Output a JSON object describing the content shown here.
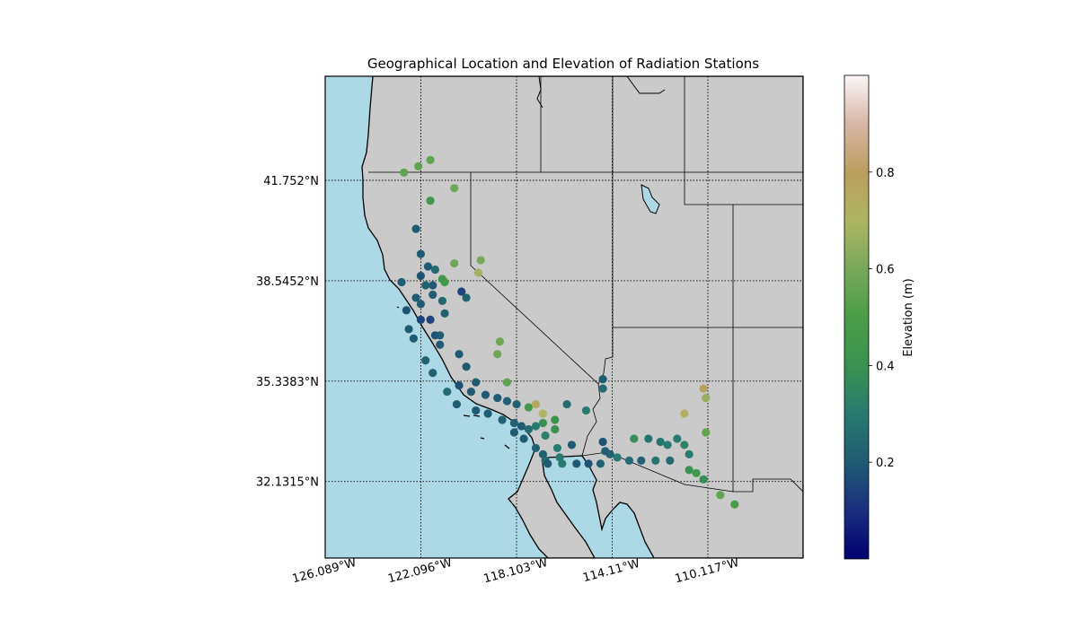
{
  "chart_data": {
    "type": "scatter",
    "title": "Geographical Location and Elevation of Radiation Stations",
    "map_extent": {
      "lon": [
        -126.089,
        -114.11
      ],
      "lat": [
        29.2,
        44.9
      ]
    },
    "x_ticks": [
      {
        "value": -126.089,
        "label": "126.089°W"
      },
      {
        "value": -122.096,
        "label": "122.096°W"
      },
      {
        "value": -118.103,
        "label": "118.103°W"
      },
      {
        "value": -114.11,
        "label": "114.11°W"
      },
      {
        "value": -110.117,
        "label": "110.117°W"
      }
    ],
    "y_ticks": [
      {
        "value": 41.752,
        "label": "41.752°N"
      },
      {
        "value": 38.5452,
        "label": "38.5452°N"
      },
      {
        "value": 35.3383,
        "label": "35.3383°N"
      },
      {
        "value": 32.1315,
        "label": "32.1315°N"
      }
    ],
    "grid": "dotted",
    "colorbar": {
      "label": "Elevation (m)",
      "range": [
        0,
        1
      ],
      "ticks": [
        {
          "value": 0.2,
          "label": "0.2"
        },
        {
          "value": 0.4,
          "label": "0.4"
        },
        {
          "value": 0.6,
          "label": "0.6"
        },
        {
          "value": 0.8,
          "label": "0.8"
        }
      ],
      "colormap": "gist_earth"
    },
    "colors": {
      "ocean": "#add8e6",
      "land": "#cacaca"
    },
    "points": [
      [
        -122.8,
        42.0,
        0.55
      ],
      [
        -122.2,
        42.2,
        0.55
      ],
      [
        -121.7,
        42.4,
        0.55
      ],
      [
        -120.7,
        41.5,
        0.58
      ],
      [
        -121.7,
        41.1,
        0.45
      ],
      [
        -122.3,
        40.2,
        0.2
      ],
      [
        -122.1,
        39.4,
        0.2
      ],
      [
        -120.7,
        39.1,
        0.58
      ],
      [
        -119.7,
        38.8,
        0.68
      ],
      [
        -121.8,
        39.0,
        0.2
      ],
      [
        -122.1,
        38.7,
        0.18
      ],
      [
        -121.5,
        38.9,
        0.25
      ],
      [
        -122.9,
        38.5,
        0.2
      ],
      [
        -121.9,
        38.4,
        0.22
      ],
      [
        -121.6,
        38.1,
        0.2
      ],
      [
        -121.2,
        38.6,
        0.45
      ],
      [
        -121.1,
        38.5,
        0.45
      ],
      [
        -121.6,
        38.4,
        0.2
      ],
      [
        -120.4,
        38.2,
        0.15
      ],
      [
        -122.3,
        38.0,
        0.2
      ],
      [
        -122.1,
        37.8,
        0.2
      ],
      [
        -122.7,
        37.6,
        0.18
      ],
      [
        -121.2,
        37.9,
        0.24
      ],
      [
        -121.1,
        37.5,
        0.22
      ],
      [
        -120.2,
        38.0,
        0.22
      ],
      [
        -121.7,
        37.3,
        0.15
      ],
      [
        -122.1,
        37.3,
        0.15
      ],
      [
        -121.5,
        36.8,
        0.18
      ],
      [
        -121.3,
        36.8,
        0.2
      ],
      [
        -121.3,
        36.5,
        0.2
      ],
      [
        -120.5,
        36.2,
        0.2
      ],
      [
        -120.2,
        35.8,
        0.2
      ],
      [
        -119.8,
        35.3,
        0.2
      ],
      [
        -120.0,
        35.0,
        0.2
      ],
      [
        -120.5,
        35.2,
        0.18
      ],
      [
        -119.4,
        34.9,
        0.2
      ],
      [
        -118.9,
        34.8,
        0.2
      ],
      [
        -118.5,
        34.7,
        0.22
      ],
      [
        -118.1,
        34.6,
        0.22
      ],
      [
        -117.6,
        34.5,
        0.45
      ],
      [
        -117.0,
        34.0,
        0.4
      ],
      [
        -116.5,
        34.1,
        0.4
      ],
      [
        -116.5,
        33.8,
        0.4
      ],
      [
        -118.2,
        33.7,
        0.2
      ],
      [
        -117.8,
        33.5,
        0.2
      ],
      [
        -117.3,
        33.2,
        0.22
      ],
      [
        -117.0,
        33.0,
        0.22
      ],
      [
        -116.9,
        32.8,
        0.25
      ],
      [
        -116.8,
        32.7,
        0.2
      ],
      [
        -116.2,
        32.7,
        0.3
      ],
      [
        -115.6,
        32.7,
        0.2
      ],
      [
        -115.1,
        32.7,
        0.18
      ],
      [
        -114.6,
        32.7,
        0.22
      ],
      [
        -113.2,
        33.5,
        0.38
      ],
      [
        -112.6,
        33.5,
        0.28
      ],
      [
        -112.1,
        33.4,
        0.28
      ],
      [
        -111.8,
        33.3,
        0.3
      ],
      [
        -111.4,
        33.5,
        0.3
      ],
      [
        -111.1,
        33.3,
        0.33
      ],
      [
        -110.9,
        33.0,
        0.3
      ],
      [
        -110.9,
        32.5,
        0.4
      ],
      [
        -110.6,
        32.4,
        0.45
      ],
      [
        -110.3,
        32.2,
        0.38
      ],
      [
        -109.6,
        31.7,
        0.55
      ],
      [
        -109.0,
        31.4,
        0.5
      ],
      [
        -110.2,
        33.7,
        0.55
      ],
      [
        -111.1,
        34.3,
        0.72
      ],
      [
        -110.2,
        34.8,
        0.65
      ],
      [
        -119.6,
        39.2,
        0.6
      ],
      [
        -118.8,
        36.6,
        0.58
      ],
      [
        -118.9,
        36.2,
        0.58
      ],
      [
        -118.5,
        35.3,
        0.55
      ],
      [
        -117.3,
        34.6,
        0.75
      ],
      [
        -117.0,
        34.3,
        0.7
      ],
      [
        -110.3,
        35.1,
        0.78
      ],
      [
        -122.6,
        37.0,
        0.2
      ],
      [
        -122.4,
        36.7,
        0.2
      ],
      [
        -121.9,
        36.0,
        0.22
      ],
      [
        -121.6,
        35.6,
        0.22
      ],
      [
        -121.0,
        35.0,
        0.25
      ],
      [
        -120.6,
        34.6,
        0.2
      ],
      [
        -119.8,
        34.4,
        0.2
      ],
      [
        -119.3,
        34.3,
        0.2
      ],
      [
        -118.7,
        34.1,
        0.22
      ],
      [
        -118.2,
        34.0,
        0.22
      ],
      [
        -117.9,
        33.9,
        0.2
      ],
      [
        -117.6,
        33.8,
        0.25
      ],
      [
        -117.3,
        33.9,
        0.3
      ],
      [
        -116.9,
        33.6,
        0.32
      ],
      [
        -116.4,
        33.2,
        0.3
      ],
      [
        -115.8,
        33.3,
        0.2
      ],
      [
        -114.5,
        33.4,
        0.18
      ],
      [
        -114.4,
        33.1,
        0.2
      ],
      [
        -114.2,
        33.0,
        0.22
      ],
      [
        -113.9,
        32.9,
        0.3
      ],
      [
        -113.4,
        32.8,
        0.25
      ],
      [
        -112.9,
        32.8,
        0.22
      ],
      [
        -112.3,
        32.8,
        0.28
      ],
      [
        -111.7,
        32.8,
        0.25
      ],
      [
        -114.5,
        35.4,
        0.2
      ],
      [
        -114.5,
        35.1,
        0.25
      ],
      [
        -115.2,
        34.4,
        0.3
      ],
      [
        -116.0,
        34.6,
        0.25
      ],
      [
        -116.3,
        32.9,
        0.3
      ]
    ]
  }
}
